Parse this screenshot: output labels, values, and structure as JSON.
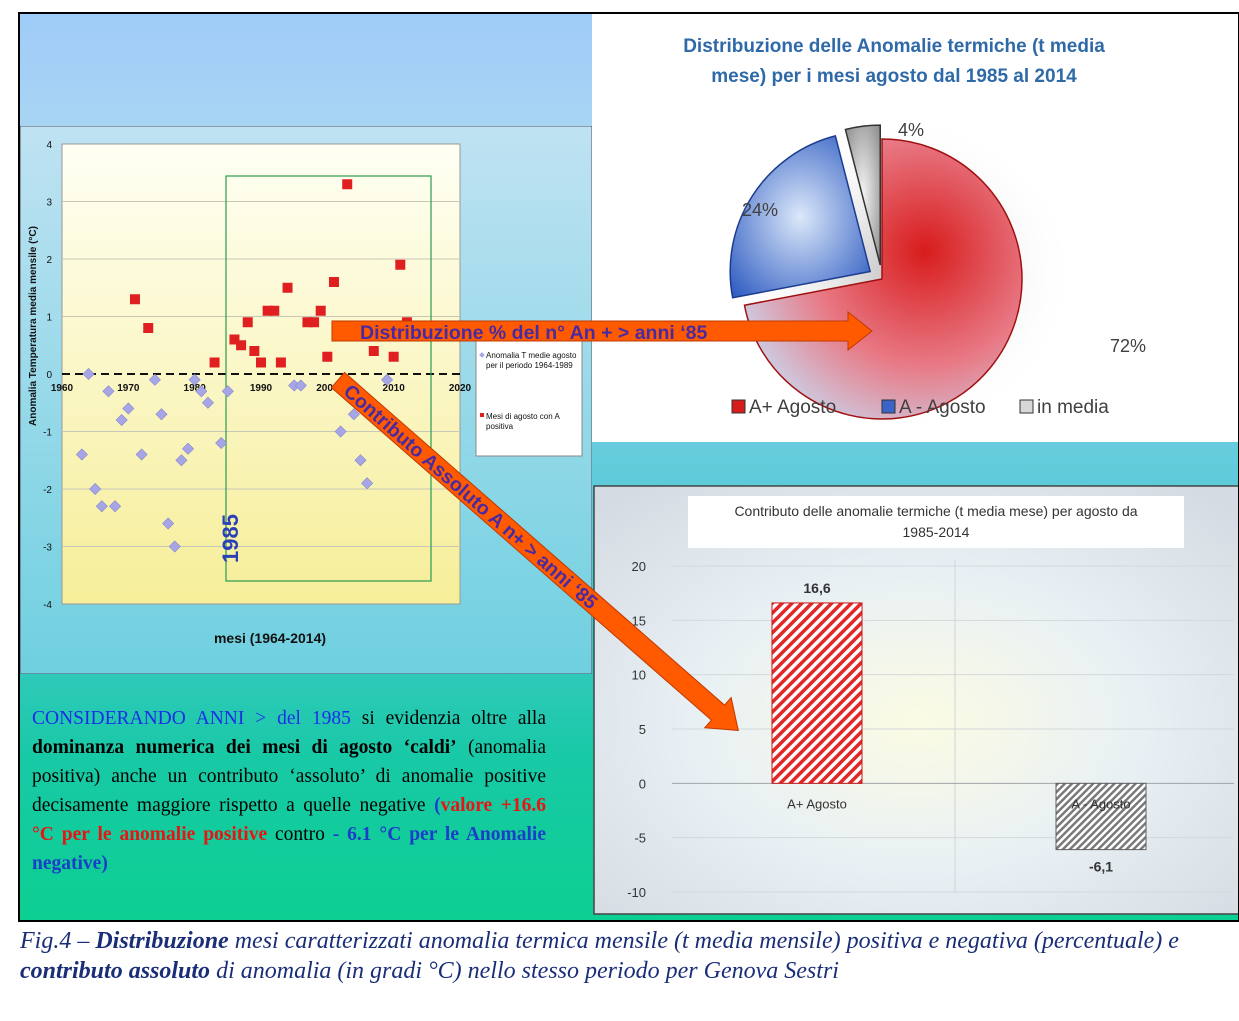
{
  "scatter": {
    "y_axis_label": "Anomalia Temperatura media mensile (°C)",
    "x_axis_label": "mesi (1964-2014)",
    "year_marker": "1985",
    "legend_blue": "Anomalia T medie agosto per il periodo 1964-1989",
    "legend_red": "Mesi di agosto con A positiva",
    "chart_data": {
      "type": "scatter",
      "xlim": [
        1960,
        2020
      ],
      "ylim": [
        -4,
        4
      ],
      "x_ticks": [
        "1960",
        "1970",
        "1980",
        "1990",
        "2000",
        "2010",
        "2020"
      ],
      "y_ticks": [
        "4",
        "3",
        "2",
        "1",
        "0",
        "-1",
        "-2",
        "-3",
        "-4"
      ],
      "series": [
        {
          "name": "Anomalia T medie agosto per il periodo 1964-1989",
          "color": "#a6a6e6",
          "points": [
            [
              1963,
              -1.4
            ],
            [
              1964,
              0
            ],
            [
              1965,
              -2
            ],
            [
              1966,
              -2.3
            ],
            [
              1967,
              -0.3
            ],
            [
              1968,
              -2.3
            ],
            [
              1969,
              -0.8
            ],
            [
              1970,
              -0.6
            ],
            [
              1972,
              -1.4
            ],
            [
              1974,
              -0.1
            ],
            [
              1975,
              -0.7
            ],
            [
              1976,
              -2.6
            ],
            [
              1977,
              -3
            ],
            [
              1978,
              -1.5
            ],
            [
              1979,
              -1.3
            ],
            [
              1980,
              -0.1
            ],
            [
              1981,
              -0.3
            ],
            [
              1982,
              -0.5
            ],
            [
              1984,
              -1.2
            ],
            [
              1985,
              -0.3
            ],
            [
              1995,
              -0.2
            ],
            [
              1996,
              -0.2
            ],
            [
              2002,
              -1
            ],
            [
              2004,
              -0.7
            ],
            [
              2005,
              -1.5
            ],
            [
              2006,
              -1.9
            ],
            [
              2009,
              -0.1
            ]
          ]
        },
        {
          "name": "Mesi di agosto con A positiva",
          "color": "#e02020",
          "points": [
            [
              1971,
              1.3
            ],
            [
              1973,
              0.8
            ],
            [
              1983,
              0.2
            ],
            [
              1986,
              0.6
            ],
            [
              1987,
              0.5
            ],
            [
              1988,
              0.9
            ],
            [
              1989,
              0.4
            ],
            [
              1990,
              0.2
            ],
            [
              1991,
              1.1
            ],
            [
              1992,
              1.1
            ],
            [
              1993,
              0.2
            ],
            [
              1994,
              1.5
            ],
            [
              1997,
              0.9
            ],
            [
              1998,
              0.9
            ],
            [
              1999,
              1.1
            ],
            [
              2000,
              0.3
            ],
            [
              2001,
              1.6
            ],
            [
              2003,
              3.3
            ],
            [
              2007,
              0.4
            ],
            [
              2010,
              0.3
            ],
            [
              2011,
              1.9
            ],
            [
              2012,
              0.9
            ]
          ]
        }
      ]
    }
  },
  "pie": {
    "title": "Distribuzione delle Anomalie termiche  (t media mese) per i mesi agosto dal 1985 al 2014",
    "title_line1": "Distribuzione delle Anomalie termiche  (t media",
    "title_line2": "mese) per i mesi agosto dal 1985 al 2014",
    "chart_data": {
      "type": "pie",
      "labels": [
        "A+ Agosto",
        "A - Agosto",
        "in media"
      ],
      "values": [
        72,
        24,
        4
      ],
      "display_labels": [
        "72%",
        "24%",
        "4%"
      ],
      "colors": [
        "#d81c1c",
        "#3a64c6",
        "#bfbfbf"
      ],
      "legend_position": "bottom"
    }
  },
  "bar": {
    "title": "Contributo delle anomalie termiche  (t media mese) per agosto da 1985-2014",
    "title_line1": "Contributo delle anomalie termiche  (t media mese) per agosto da",
    "title_line2": "1985-2014",
    "chart_data": {
      "type": "bar",
      "categories": [
        "A+ Agosto",
        "A - Agosto"
      ],
      "values": [
        16.6,
        -6.1
      ],
      "display_labels": [
        "16,6",
        "-6,1"
      ],
      "ylim": [
        -10,
        20
      ],
      "y_ticks": [
        "20",
        "15",
        "10",
        "5",
        "0",
        "-5",
        "-10"
      ],
      "colors": [
        "#e02828",
        "#808080"
      ]
    }
  },
  "arrows": {
    "arrow1": "Distribuzione % del n° An + > anni ‘85",
    "arrow2": "Contributo Assoluto A n+ > anni ‘85"
  },
  "body": {
    "p1": "CONSIDERANDO ANNI > del 1985",
    "p2": " si evidenzia oltre alla ",
    "p3": "dominanza numerica dei mesi di agosto ‘caldi’",
    "p4": " (anomalia positiva) anche un contributo ‘assoluto’ di anomalie positive  decisamente maggiore rispetto a quelle negative ",
    "p5": "(",
    "p6": "valore +16.6 °C per le anomalie positive",
    "p7": " contro ",
    "p8": "- 6.1 °C per le Anomalie negative)"
  },
  "caption": {
    "c1": "Fig.4 – ",
    "c2": "Distribuzione",
    "c3": "  mesi caratterizzati anomalia termica mensile (t media mensile) positiva e negativa (percentuale)  e ",
    "c4": "contributo assoluto",
    "c5": " di anomalia (in gradi °C) nello stesso periodo per Genova Sestri"
  }
}
